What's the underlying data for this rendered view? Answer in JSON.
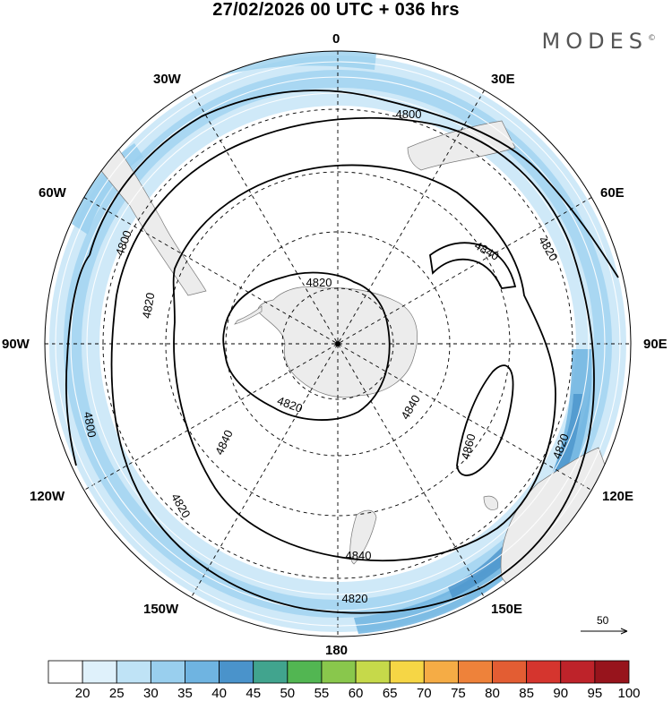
{
  "header": {
    "title": "27/02/2026  00 UTC  + 036 hrs",
    "brand": "MODES",
    "brand_mark": "©"
  },
  "map": {
    "projection": "south polar stereographic",
    "longitude_labels": {
      "n": "0",
      "s": "180",
      "e": "90E",
      "w": "90W",
      "e30": "30E",
      "e60": "60E",
      "e120": "120E",
      "e150": "150E",
      "w30": "30W",
      "w60": "60W",
      "w120": "120W",
      "w150": "150W"
    },
    "contour_labels": {
      "c4800_top": "4800",
      "c4800_left": "4800",
      "c4800_bottom": "4800",
      "c4820_leftouter": "4820",
      "c4820_right": "4820",
      "c4820_lowright": "4820",
      "c4820_bottomleft": "4820",
      "c4820_bottom": "4820",
      "c4820_inner_top": "4820",
      "c4820_inner_bottom": "4820",
      "c4840_top": "4840",
      "c4840_mid": "4840",
      "c4840_left": "4840",
      "c4840_bottom": "4840",
      "c4860": "4860"
    },
    "reference_vector_label": "50"
  },
  "colorbar": {
    "labels": [
      "20",
      "25",
      "30",
      "35",
      "40",
      "45",
      "50",
      "55",
      "60",
      "65",
      "70",
      "75",
      "80",
      "85",
      "90",
      "95",
      "100"
    ],
    "colors": [
      "#ffffff",
      "#dff1fb",
      "#bfe3f6",
      "#99cfee",
      "#6fb4e1",
      "#4a93cb",
      "#41a48e",
      "#52b652",
      "#89c74c",
      "#c6d94a",
      "#f6d645",
      "#f5ac45",
      "#ee823a",
      "#e35d33",
      "#d5352e",
      "#be232a",
      "#97141c"
    ]
  }
}
